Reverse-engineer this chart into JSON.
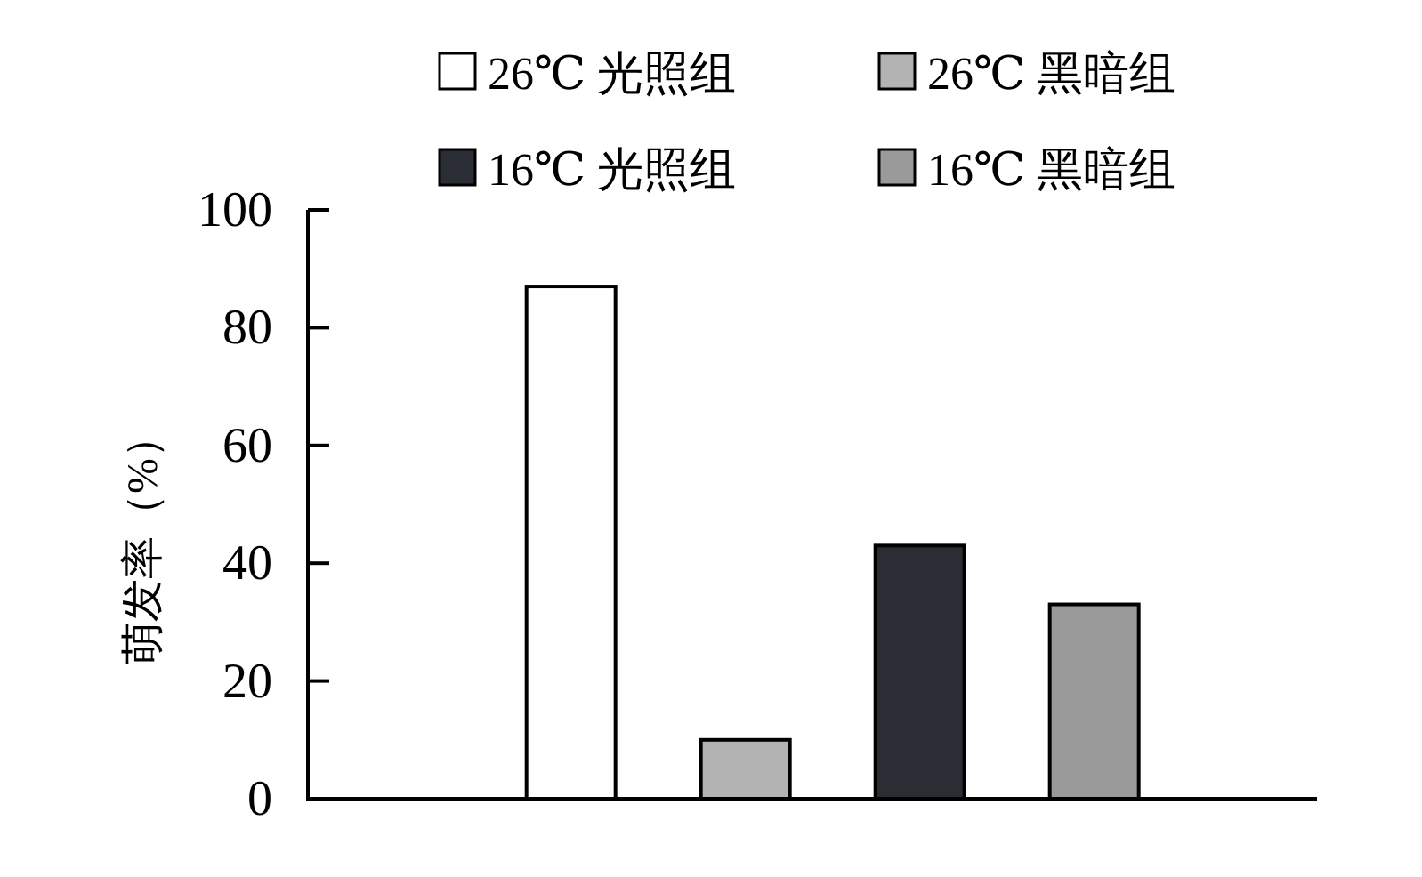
{
  "chart_data": {
    "type": "bar",
    "ylabel": "萌发率（%）",
    "categories": [
      null
    ],
    "ylim": [
      0,
      100
    ],
    "yticks": [
      0,
      20,
      40,
      60,
      80,
      100
    ],
    "legend": "top",
    "grid": false,
    "series": [
      {
        "name": "26℃ 光照组",
        "color": "#ffffff",
        "values": [
          87
        ]
      },
      {
        "name": "26℃ 黑暗组",
        "color": "#b3b3b3",
        "values": [
          10
        ]
      },
      {
        "name": "16℃ 光照组",
        "color": "#2a2d33",
        "values": [
          43
        ]
      },
      {
        "name": "16℃ 黑暗组",
        "color": "#9a9a9a",
        "values": [
          33
        ]
      }
    ]
  }
}
